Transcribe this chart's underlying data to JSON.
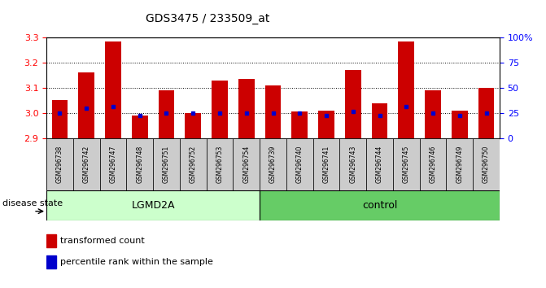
{
  "title": "GDS3475 / 233509_at",
  "samples": [
    "GSM296738",
    "GSM296742",
    "GSM296747",
    "GSM296748",
    "GSM296751",
    "GSM296752",
    "GSM296753",
    "GSM296754",
    "GSM296739",
    "GSM296740",
    "GSM296741",
    "GSM296743",
    "GSM296744",
    "GSM296745",
    "GSM296746",
    "GSM296749",
    "GSM296750"
  ],
  "bar_values": [
    3.05,
    3.16,
    3.285,
    2.99,
    3.09,
    3.0,
    3.13,
    3.135,
    3.11,
    3.005,
    3.01,
    3.17,
    3.04,
    3.285,
    3.09,
    3.01,
    3.1
  ],
  "percentile_values": [
    3.0,
    3.02,
    3.025,
    2.99,
    3.0,
    3.0,
    3.0,
    3.0,
    3.0,
    3.0,
    2.99,
    3.005,
    2.99,
    3.025,
    3.0,
    2.99,
    3.0
  ],
  "groups": {
    "LGMD2A": 8,
    "control": 9
  },
  "ylim": [
    2.9,
    3.3
  ],
  "y_ticks_left": [
    2.9,
    3.0,
    3.1,
    3.2,
    3.3
  ],
  "y_ticks_right": [
    0,
    25,
    50,
    75,
    100
  ],
  "bar_color": "#cc0000",
  "percentile_color": "#0000cc",
  "bar_bottom": 2.9,
  "lgmd2a_color": "#ccffcc",
  "control_color": "#66cc66",
  "label_bg_color": "#cccccc",
  "disease_state_label": "disease state",
  "legend_items": [
    "transformed count",
    "percentile rank within the sample"
  ]
}
